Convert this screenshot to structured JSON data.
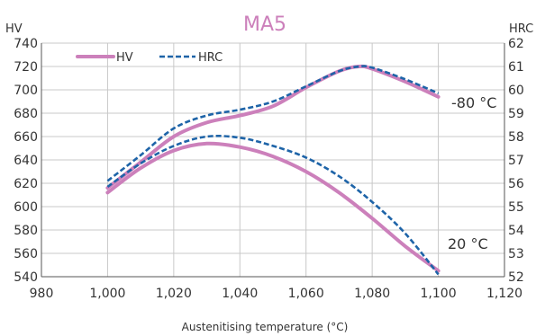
{
  "chart_data": {
    "type": "line",
    "title": "MA5",
    "xlabel": "Austenitising temperature (°C)",
    "ylabel_left": "HV",
    "ylabel_right": "HRC",
    "xlim": [
      980,
      1120
    ],
    "ylim_left": [
      540,
      740
    ],
    "ylim_right": [
      52,
      62
    ],
    "x_ticks": [
      "980",
      "1,000",
      "1,020",
      "1,040",
      "1,060",
      "1,080",
      "1,100",
      "1,120"
    ],
    "y_left_ticks": [
      "540",
      "560",
      "580",
      "600",
      "620",
      "640",
      "660",
      "680",
      "700",
      "720",
      "740"
    ],
    "y_right_ticks": [
      "52",
      "53",
      "54",
      "55",
      "56",
      "57",
      "58",
      "59",
      "60",
      "61",
      "62"
    ],
    "grid": true,
    "legend_placement": "top-left",
    "annotations": [
      {
        "text": "-80 °C",
        "curve": "-80 °C"
      },
      {
        "text": "20 °C",
        "curve": "20 °C"
      }
    ],
    "series": [
      {
        "name": "HV",
        "axis": "left",
        "group": "-80 °C",
        "color": "#cc80bb",
        "style": "solid",
        "x": [
          1000,
          1010,
          1020,
          1030,
          1040,
          1050,
          1060,
          1070,
          1076,
          1080,
          1090,
          1100
        ],
        "y": [
          616,
          638,
          660,
          672,
          678,
          686,
          702,
          716,
          720,
          718,
          707,
          694
        ]
      },
      {
        "name": "HRC",
        "axis": "right",
        "group": "-80 °C",
        "color": "#1e64a8",
        "style": "dashed",
        "x": [
          1000,
          1010,
          1020,
          1030,
          1040,
          1050,
          1060,
          1070,
          1076,
          1080,
          1090,
          1100
        ],
        "y": [
          56.1,
          57.2,
          58.35,
          58.9,
          59.15,
          59.5,
          60.15,
          60.8,
          61.0,
          60.95,
          60.45,
          59.85
        ]
      },
      {
        "name": "HV",
        "axis": "left",
        "group": "20 °C",
        "color": "#cc80bb",
        "style": "solid",
        "x": [
          1000,
          1010,
          1020,
          1030,
          1040,
          1050,
          1060,
          1070,
          1080,
          1090,
          1100
        ],
        "y": [
          612,
          633,
          648,
          654,
          651,
          643,
          630,
          612,
          590,
          566,
          545
        ]
      },
      {
        "name": "HRC",
        "axis": "right",
        "group": "20 °C",
        "color": "#1e64a8",
        "style": "dashed",
        "x": [
          1000,
          1010,
          1020,
          1030,
          1040,
          1050,
          1060,
          1070,
          1080,
          1090,
          1100
        ],
        "y": [
          55.85,
          56.85,
          57.6,
          58.0,
          57.95,
          57.6,
          57.1,
          56.3,
          55.2,
          53.85,
          52.1
        ]
      }
    ]
  }
}
